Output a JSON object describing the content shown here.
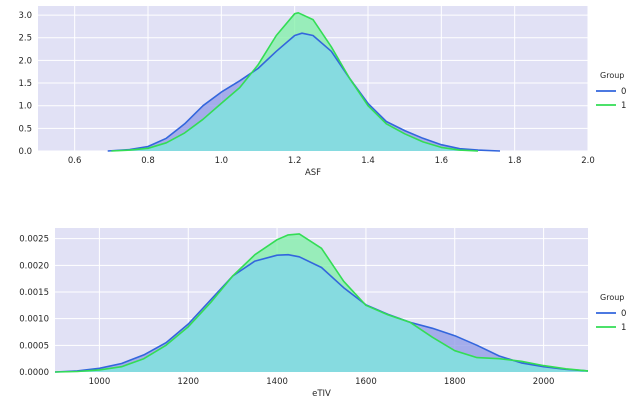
{
  "colors": {
    "background": "#e1e1f5",
    "grid": "#ffffff",
    "group0_line": "#3366dd",
    "group0_fill": "#8f9ae6",
    "group1_line": "#33dd55",
    "group1_fill": "#7ff0a5",
    "overlap_fill": "#86dbe0"
  },
  "chart_data": [
    {
      "type": "area",
      "kind": "kde",
      "xlabel": "ASF",
      "ylabel": "",
      "xlim": [
        0.5,
        2.0
      ],
      "ylim": [
        0,
        3.2
      ],
      "xticks": [
        "0.6",
        "0.8",
        "1.0",
        "1.2",
        "1.4",
        "1.6",
        "1.8",
        "2.0"
      ],
      "yticks": [
        "0.0",
        "0.5",
        "1.0",
        "1.5",
        "2.0",
        "2.5",
        "3.0"
      ],
      "grid": true,
      "legend_title": "Group",
      "legend_position": "right",
      "series": [
        {
          "name": "0",
          "color": "#3366dd",
          "x": [
            0.69,
            0.75,
            0.8,
            0.85,
            0.9,
            0.95,
            1.0,
            1.05,
            1.1,
            1.15,
            1.2,
            1.22,
            1.25,
            1.3,
            1.35,
            1.4,
            1.45,
            1.5,
            1.55,
            1.6,
            1.65,
            1.7,
            1.76
          ],
          "y": [
            0.0,
            0.03,
            0.1,
            0.28,
            0.6,
            1.0,
            1.3,
            1.55,
            1.82,
            2.2,
            2.55,
            2.6,
            2.55,
            2.2,
            1.6,
            1.05,
            0.65,
            0.45,
            0.28,
            0.14,
            0.05,
            0.02,
            0.0
          ]
        },
        {
          "name": "1",
          "color": "#33dd55",
          "x": [
            0.7,
            0.75,
            0.8,
            0.85,
            0.9,
            0.95,
            1.0,
            1.05,
            1.1,
            1.15,
            1.2,
            1.21,
            1.25,
            1.3,
            1.35,
            1.4,
            1.45,
            1.5,
            1.55,
            1.6,
            1.65,
            1.7
          ],
          "y": [
            0.0,
            0.02,
            0.06,
            0.18,
            0.4,
            0.7,
            1.05,
            1.4,
            1.9,
            2.55,
            3.03,
            3.05,
            2.9,
            2.3,
            1.6,
            1.0,
            0.6,
            0.38,
            0.2,
            0.08,
            0.02,
            0.0
          ]
        }
      ]
    },
    {
      "type": "area",
      "kind": "kde",
      "xlabel": "eTIV",
      "ylabel": "",
      "xlim": [
        900,
        2100
      ],
      "ylim": [
        0,
        0.0027
      ],
      "xticks": [
        "1000",
        "1200",
        "1400",
        "1600",
        "1800",
        "2000"
      ],
      "yticks": [
        "0.0000",
        "0.0005",
        "0.0010",
        "0.0015",
        "0.0020",
        "0.0025"
      ],
      "grid": true,
      "legend_title": "Group",
      "legend_position": "right",
      "series": [
        {
          "name": "0",
          "color": "#3366dd",
          "x": [
            900,
            950,
            1000,
            1050,
            1100,
            1150,
            1200,
            1250,
            1300,
            1350,
            1400,
            1425,
            1450,
            1500,
            1550,
            1600,
            1650,
            1700,
            1750,
            1800,
            1850,
            1900,
            1950,
            2000,
            2050,
            2100
          ],
          "y": [
            0.0,
            2e-05,
            7e-05,
            0.00016,
            0.00032,
            0.00055,
            0.0009,
            0.00135,
            0.0018,
            0.00208,
            0.00219,
            0.0022,
            0.00216,
            0.00196,
            0.00158,
            0.00126,
            0.00108,
            0.00093,
            0.00082,
            0.00068,
            0.0005,
            0.0003,
            0.00017,
            0.0001,
            5e-05,
            2e-05
          ]
        },
        {
          "name": "1",
          "color": "#33dd55",
          "x": [
            900,
            950,
            1000,
            1050,
            1100,
            1150,
            1200,
            1250,
            1300,
            1350,
            1400,
            1425,
            1450,
            1500,
            1550,
            1600,
            1650,
            1700,
            1750,
            1800,
            1850,
            1900,
            1950,
            2000,
            2050,
            2100
          ],
          "y": [
            0.0,
            1e-05,
            4e-05,
            0.0001,
            0.00025,
            0.0005,
            0.00085,
            0.0013,
            0.0018,
            0.0022,
            0.00248,
            0.00257,
            0.00259,
            0.00232,
            0.0017,
            0.00125,
            0.00107,
            0.00093,
            0.00065,
            0.0004,
            0.00027,
            0.00025,
            0.0002,
            0.00012,
            6e-05,
            2e-05
          ]
        }
      ]
    }
  ]
}
